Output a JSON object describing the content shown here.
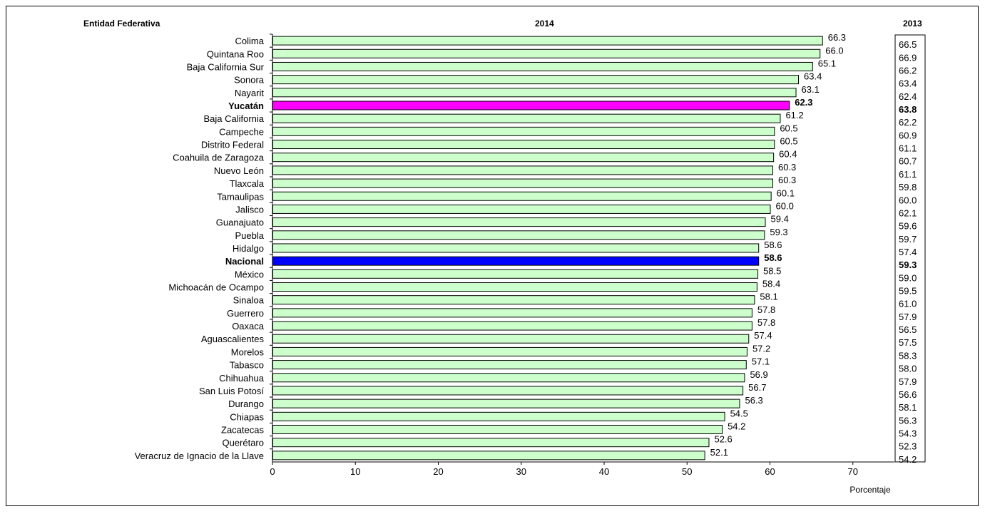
{
  "headers": {
    "entity": "Entidad Federativa",
    "year_current": "2014",
    "year_previous": "2013"
  },
  "chart_data": {
    "type": "bar",
    "orientation": "horizontal",
    "xlabel": "Porcentaje",
    "xlim": [
      0,
      75
    ],
    "xticks": [
      0,
      10,
      20,
      30,
      40,
      50,
      60,
      70
    ],
    "grid": false,
    "colors": {
      "default": "#ccffcc",
      "highlight_state": "#ff00ff",
      "national": "#0000ff"
    },
    "categories": [
      "Colima",
      "Quintana Roo",
      "Baja California Sur",
      "Sonora",
      "Nayarit",
      "Yucatán",
      "Baja California",
      "Campeche",
      "Distrito Federal",
      "Coahuila de Zaragoza",
      "Nuevo León",
      "Tlaxcala",
      "Tamaulipas",
      "Jalisco",
      "Guanajuato",
      "Puebla",
      "Hidalgo",
      "Nacional",
      "México",
      "Michoacán de Ocampo",
      "Sinaloa",
      "Guerrero",
      "Oaxaca",
      "Aguascalientes",
      "Morelos",
      "Tabasco",
      "Chihuahua",
      "San Luis Potosí",
      "Durango",
      "Chiapas",
      "Zacatecas",
      "Querétaro",
      "Veracruz de Ignacio de la Llave"
    ],
    "values_2014": [
      66.3,
      66.0,
      65.1,
      63.4,
      63.1,
      62.3,
      61.2,
      60.5,
      60.5,
      60.4,
      60.3,
      60.3,
      60.1,
      60.0,
      59.4,
      59.3,
      58.6,
      58.6,
      58.5,
      58.4,
      58.1,
      57.8,
      57.8,
      57.4,
      57.2,
      57.1,
      56.9,
      56.7,
      56.3,
      54.5,
      54.2,
      52.6,
      52.1
    ],
    "labels_2014": [
      "66.3",
      "66.0",
      "65.1",
      "63.4",
      "63.1",
      "62.3",
      "61.2",
      "60.5",
      "60.5",
      "60.4",
      "60.3",
      "60.3",
      "60.1",
      "60.0",
      "59.4",
      "59.3",
      "58.6",
      "58.6",
      "58.5",
      "58.4",
      "58.1",
      "57.8",
      "57.8",
      "57.4",
      "57.2",
      "57.1",
      "56.9",
      "56.7",
      "56.3",
      "54.5",
      "54.2",
      "52.6",
      "52.1"
    ],
    "values_2013": [
      "66.5",
      "66.9",
      "66.2",
      "63.4",
      "62.4",
      "63.8",
      "62.2",
      "60.9",
      "61.1",
      "60.7",
      "61.1",
      "59.8",
      "60.0",
      "62.1",
      "59.6",
      "59.7",
      "57.4",
      "59.3",
      "59.0",
      "59.5",
      "61.0",
      "57.9",
      "56.5",
      "57.5",
      "58.3",
      "58.0",
      "57.9",
      "56.6",
      "58.1",
      "56.3",
      "54.3",
      "52.3",
      "54.2"
    ],
    "highlight_state": "Yucatán",
    "national": "Nacional"
  }
}
